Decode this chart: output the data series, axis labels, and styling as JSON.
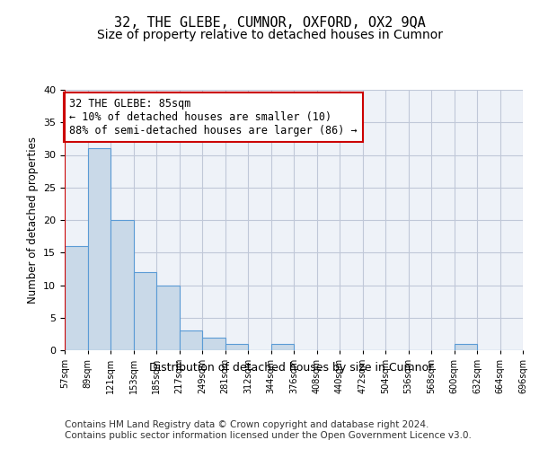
{
  "title1": "32, THE GLEBE, CUMNOR, OXFORD, OX2 9QA",
  "title2": "Size of property relative to detached houses in Cumnor",
  "xlabel": "Distribution of detached houses by size in Cumnor",
  "ylabel": "Number of detached properties",
  "bar_values": [
    16,
    31,
    20,
    12,
    10,
    3,
    2,
    1,
    0,
    1,
    0,
    0,
    0,
    0,
    0,
    0,
    0,
    1,
    0,
    0
  ],
  "bin_labels": [
    "57sqm",
    "89sqm",
    "121sqm",
    "153sqm",
    "185sqm",
    "217sqm",
    "249sqm",
    "281sqm",
    "312sqm",
    "344sqm",
    "376sqm",
    "408sqm",
    "440sqm",
    "472sqm",
    "504sqm",
    "536sqm",
    "568sqm",
    "600sqm",
    "632sqm",
    "664sqm",
    "696sqm"
  ],
  "bar_color": "#c9d9e8",
  "bar_edge_color": "#5b9bd5",
  "vline_color": "#cc0000",
  "annotation_text": "32 THE GLEBE: 85sqm\n← 10% of detached houses are smaller (10)\n88% of semi-detached houses are larger (86) →",
  "annotation_box_color": "#cc0000",
  "ylim": [
    0,
    40
  ],
  "yticks": [
    0,
    5,
    10,
    15,
    20,
    25,
    30,
    35,
    40
  ],
  "grid_color": "#c0c8d8",
  "background_color": "#eef2f8",
  "footer1": "Contains HM Land Registry data © Crown copyright and database right 2024.",
  "footer2": "Contains public sector information licensed under the Open Government Licence v3.0.",
  "title1_fontsize": 11,
  "title2_fontsize": 10,
  "annotation_fontsize": 8.5,
  "footer_fontsize": 7.5
}
